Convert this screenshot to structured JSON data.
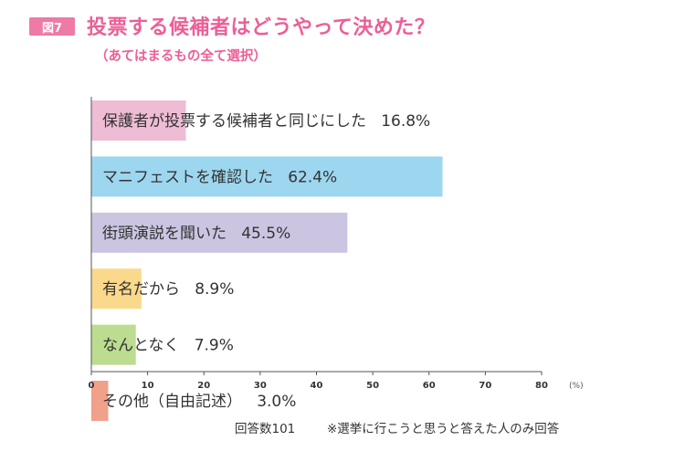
{
  "figure_badge": "図7",
  "title": "投票する候補者はどうやって決めた？",
  "subtitle": "（あてはまるもの全て選択）",
  "chart_data": {
    "type": "bar",
    "orientation": "horizontal",
    "categories": [
      "保護者が投票する候補者と同じにした",
      "マニフェストを確認した",
      "街頭演説を聞いた",
      "有名だから",
      "なんとなく",
      "その他（自由記述）"
    ],
    "values": [
      16.8,
      62.4,
      45.5,
      8.9,
      7.9,
      3.0
    ],
    "value_labels": [
      "16.8%",
      "62.4%",
      "45.5%",
      "8.9%",
      "7.9%",
      "3.0%"
    ],
    "colors": [
      "#efbcd6",
      "#9dd6ef",
      "#cbc5e2",
      "#fbd98c",
      "#bcdc8f",
      "#f1a089"
    ],
    "xlim": [
      0,
      80
    ],
    "xticks": [
      0,
      10,
      20,
      30,
      40,
      50,
      60,
      70,
      80
    ],
    "unit": "(%)",
    "grid": false
  },
  "footer": {
    "respondents": "回答数101",
    "note": "※選挙に行こうと思うと答えた人のみ回答"
  }
}
